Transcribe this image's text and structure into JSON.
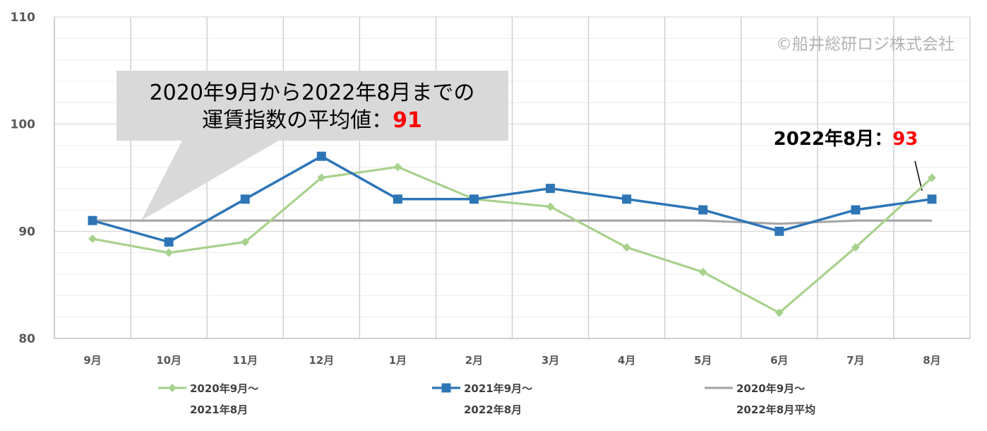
{
  "chart_data": {
    "type": "line",
    "categories": [
      "9月",
      "10月",
      "11月",
      "12月",
      "1月",
      "2月",
      "3月",
      "4月",
      "5月",
      "6月",
      "7月",
      "8月"
    ],
    "ylim": [
      80,
      110
    ],
    "yticks": [
      80,
      90,
      100,
      110
    ],
    "grid": true,
    "legend_position": "bottom",
    "series": [
      {
        "name_line1": "2020年9月～",
        "name_line2": "2021年8月",
        "color": "#a9d18e",
        "marker": "diamond",
        "values": [
          89.3,
          88.0,
          89.0,
          95.0,
          96.0,
          93.0,
          92.3,
          88.5,
          86.2,
          82.4,
          88.5,
          95.0
        ]
      },
      {
        "name_line1": "2021年9月～",
        "name_line2": "2022年8月",
        "color": "#2e75b6",
        "marker": "square",
        "values": [
          91,
          89,
          93,
          97,
          93,
          93,
          94,
          93,
          92,
          90,
          92,
          93
        ]
      },
      {
        "name_line1": "2020年9月～",
        "name_line2": "2022年8月平均",
        "color": "#a6a6a6",
        "marker": "none",
        "values": [
          91,
          91,
          91,
          91,
          91,
          91,
          91,
          91,
          91,
          90.7,
          91,
          91
        ]
      }
    ],
    "annotations": {
      "callout_line1": "2020年9月から2022年8月までの",
      "callout_line2_prefix": "運賃指数の平均値：",
      "callout_line2_value": "91",
      "point_label_prefix": "2022年8月：",
      "point_label_value": "93"
    },
    "copyright": "©船井総研ロジ株式会社"
  }
}
